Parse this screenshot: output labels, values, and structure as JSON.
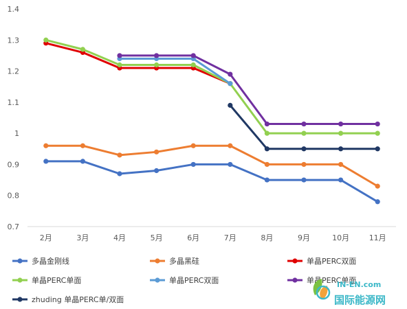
{
  "watermark": {
    "top": "IN-EN.com",
    "bottom": "国际能源网",
    "colors": {
      "teal": "#3cb8c8",
      "green": "#7cc242",
      "orange": "#f2a23a"
    }
  },
  "chart_data": {
    "type": "line",
    "categories": [
      "2月",
      "3月",
      "4月",
      "5月",
      "6月",
      "7月",
      "8月",
      "9月",
      "10月",
      "11月"
    ],
    "ylim": [
      0.7,
      1.4
    ],
    "yticks": [
      0.7,
      0.8,
      0.9,
      1,
      1.1,
      1.2,
      1.3,
      1.4
    ],
    "ytick_labels": [
      "0.7",
      "0.8",
      "0.9",
      "1",
      "1.1",
      "1.2",
      "1.3",
      "1.4"
    ],
    "grid": false,
    "legend_position": "bottom",
    "series": [
      {
        "name": "多晶金刚线",
        "color": "#4472c4",
        "values": [
          0.91,
          0.91,
          0.87,
          0.88,
          0.9,
          0.9,
          0.85,
          0.85,
          0.85,
          0.78
        ]
      },
      {
        "name": "多晶黑硅",
        "color": "#ed7d31",
        "values": [
          0.96,
          0.96,
          0.93,
          0.94,
          0.96,
          0.96,
          0.9,
          0.9,
          0.9,
          0.83
        ]
      },
      {
        "name": "单晶PERC双面",
        "color": "#e00000",
        "values": [
          1.29,
          1.26,
          1.21,
          1.21,
          1.21,
          1.16,
          null,
          null,
          null,
          null
        ]
      },
      {
        "name": "单晶PERC单面",
        "color": "#92d050",
        "values": [
          1.3,
          1.27,
          1.22,
          1.22,
          1.22,
          1.16,
          1.0,
          1.0,
          1.0,
          1.0
        ]
      },
      {
        "name": "单晶PERC双面",
        "color": "#5b9bd5",
        "values": [
          null,
          null,
          1.24,
          1.24,
          1.24,
          1.16,
          null,
          null,
          null,
          null
        ]
      },
      {
        "name": "单晶PERC单面",
        "color": "#7030a0",
        "values": [
          null,
          null,
          1.25,
          1.25,
          1.25,
          1.19,
          1.03,
          1.03,
          1.03,
          1.03
        ]
      },
      {
        "name": "zhuding 单晶PERC单/双面",
        "color": "#203864",
        "values": [
          null,
          null,
          null,
          null,
          null,
          1.09,
          0.95,
          0.95,
          0.95,
          0.95
        ]
      }
    ]
  }
}
